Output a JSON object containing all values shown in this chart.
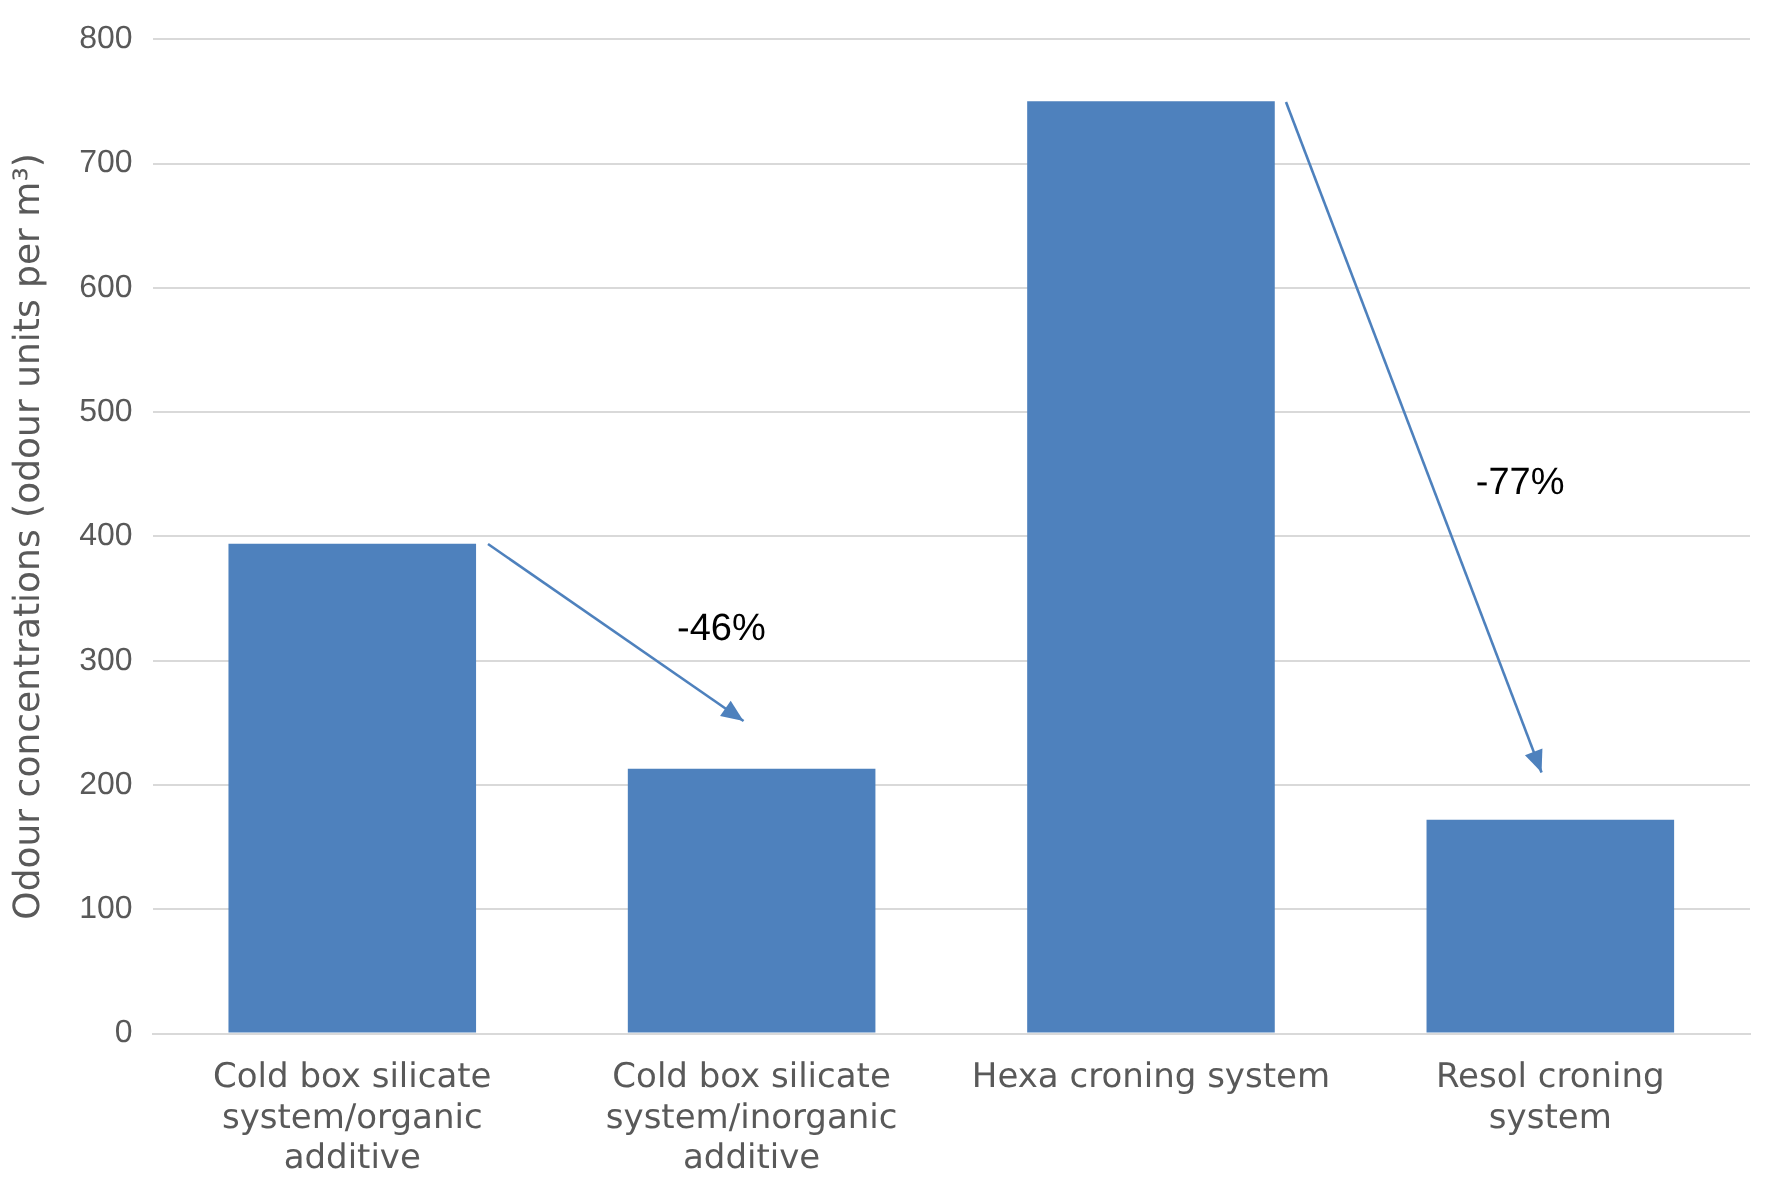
{
  "chart_data": {
    "type": "bar",
    "ylabel": "Odour concentrations (odour units per m³)",
    "categories": [
      "Cold box silicate system/organic additive",
      "Cold box silicate system/inorganic additive",
      "Hexa croning system",
      "Resol croning system"
    ],
    "values": [
      394,
      213,
      750,
      172
    ],
    "color": "#4e81bd",
    "ylim": [
      0,
      800
    ],
    "yticks": [
      0,
      100,
      200,
      300,
      400,
      500,
      600,
      700,
      800
    ],
    "grid": "y",
    "annotations": [
      "-46%",
      "-77%"
    ]
  }
}
